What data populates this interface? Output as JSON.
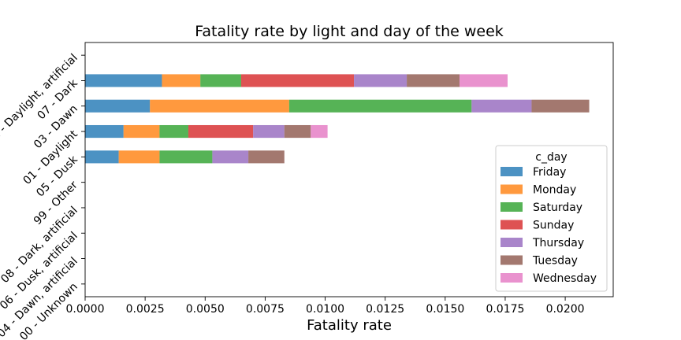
{
  "chart_data": {
    "type": "bar",
    "orientation": "horizontal",
    "stacked": true,
    "title": "Fatality rate by light and day of the week",
    "xlabel": "Fatality rate",
    "ylabel": "",
    "xlim": [
      0,
      0.022
    ],
    "xticks": [
      "0.0000",
      "0.0025",
      "0.0050",
      "0.0075",
      "0.0100",
      "0.0125",
      "0.0150",
      "0.0175",
      "0.0200"
    ],
    "xtick_values": [
      0,
      0.0025,
      0.005,
      0.0075,
      0.01,
      0.0125,
      0.015,
      0.0175,
      0.02
    ],
    "grid": false,
    "legend": {
      "title": "c_day",
      "placement": "right"
    },
    "categories": [
      "02 - Daylight, artificial",
      "07 - Dark",
      "03 - Dawn",
      "01 - Daylight",
      "05 - Dusk",
      "99 - Other",
      "08 - Dark, artificial",
      "06 - Dusk, artificial",
      "04 - Dawn, artificial",
      "00 - Unknown"
    ],
    "series": [
      {
        "name": "Friday",
        "color": "#1f77b4",
        "values": [
          0,
          0.0032,
          0.0027,
          0.0016,
          0.0014,
          0,
          0,
          0,
          0,
          0
        ]
      },
      {
        "name": "Monday",
        "color": "#ff7f0e",
        "values": [
          0,
          0.0016,
          0.0058,
          0.0015,
          0.0017,
          0,
          0,
          0,
          0,
          0
        ]
      },
      {
        "name": "Saturday",
        "color": "#2ca02c",
        "values": [
          0,
          0.0017,
          0.0076,
          0.0012,
          0.0022,
          0,
          0,
          0,
          0,
          0
        ]
      },
      {
        "name": "Sunday",
        "color": "#d62728",
        "values": [
          0,
          0.0047,
          0,
          0.0027,
          0,
          0,
          0,
          0,
          0,
          0
        ]
      },
      {
        "name": "Thursday",
        "color": "#9467bd",
        "values": [
          0,
          0.0022,
          0.0025,
          0.0013,
          0.0015,
          0,
          0,
          0,
          0,
          0
        ]
      },
      {
        "name": "Tuesday",
        "color": "#8c564b",
        "values": [
          0,
          0.0022,
          0.0024,
          0.0011,
          0.0015,
          0,
          0,
          0,
          0,
          0
        ]
      },
      {
        "name": "Wednesday",
        "color": "#e377c2",
        "values": [
          0,
          0.002,
          0,
          0.0007,
          0,
          0,
          0,
          0,
          0,
          0
        ]
      }
    ]
  }
}
